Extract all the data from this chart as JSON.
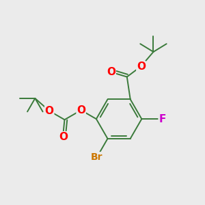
{
  "background_color": "#ebebeb",
  "bond_color": "#3a7a3a",
  "atom_colors": {
    "O": "#ff0000",
    "Br": "#cc7700",
    "F": "#cc00cc",
    "C": "#3a7a3a"
  },
  "figsize": [
    3.0,
    3.0
  ],
  "dpi": 100,
  "lw": 1.4,
  "xlim": [
    -2.8,
    2.8
  ],
  "ylim": [
    -2.8,
    2.8
  ]
}
